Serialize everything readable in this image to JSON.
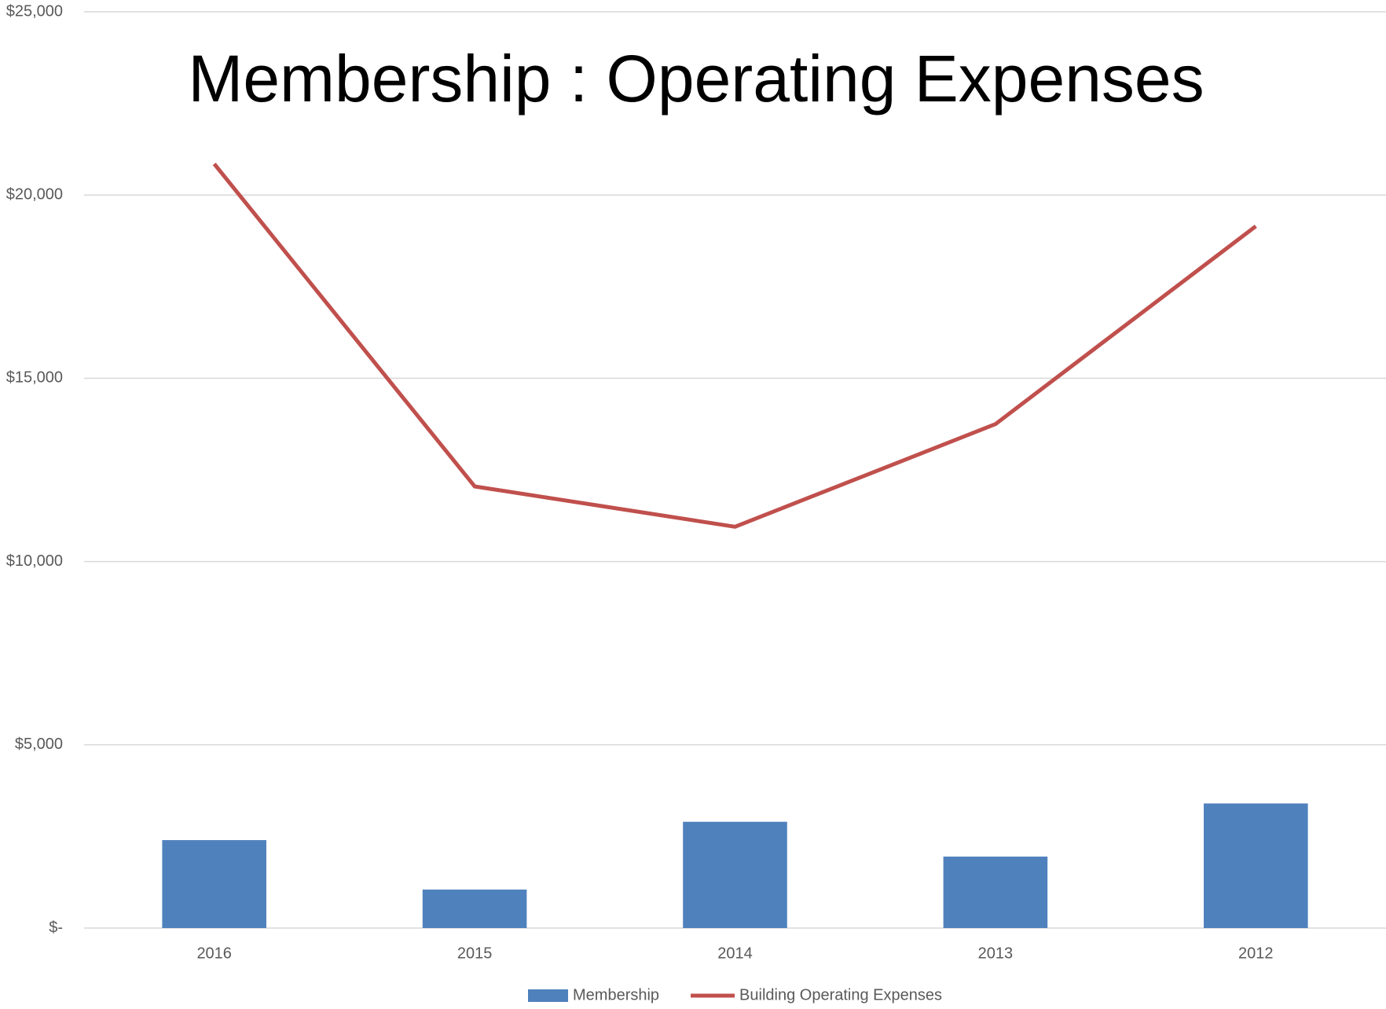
{
  "chart_data": {
    "type": "bar_line",
    "title": "Membership : Operating Expenses",
    "categories": [
      "2016",
      "2015",
      "2014",
      "2013",
      "2012"
    ],
    "series": [
      {
        "name": "Membership",
        "type": "bar",
        "color": "#4f81bd",
        "values": [
          2400,
          1050,
          2900,
          1950,
          3400
        ]
      },
      {
        "name": "Building Operating Expenses",
        "type": "line",
        "color": "#c0504d",
        "values": [
          20850,
          12050,
          10950,
          13750,
          19150
        ]
      }
    ],
    "ylim": [
      0,
      25000
    ],
    "yticks": [
      {
        "value": 0,
        "label": "$-"
      },
      {
        "value": 5000,
        "label": "$5,000"
      },
      {
        "value": 10000,
        "label": "$10,000"
      },
      {
        "value": 15000,
        "label": "$15,000"
      },
      {
        "value": 20000,
        "label": "$20,000"
      },
      {
        "value": 25000,
        "label": "$25,000"
      }
    ],
    "grid": true,
    "legend": "bottom"
  }
}
